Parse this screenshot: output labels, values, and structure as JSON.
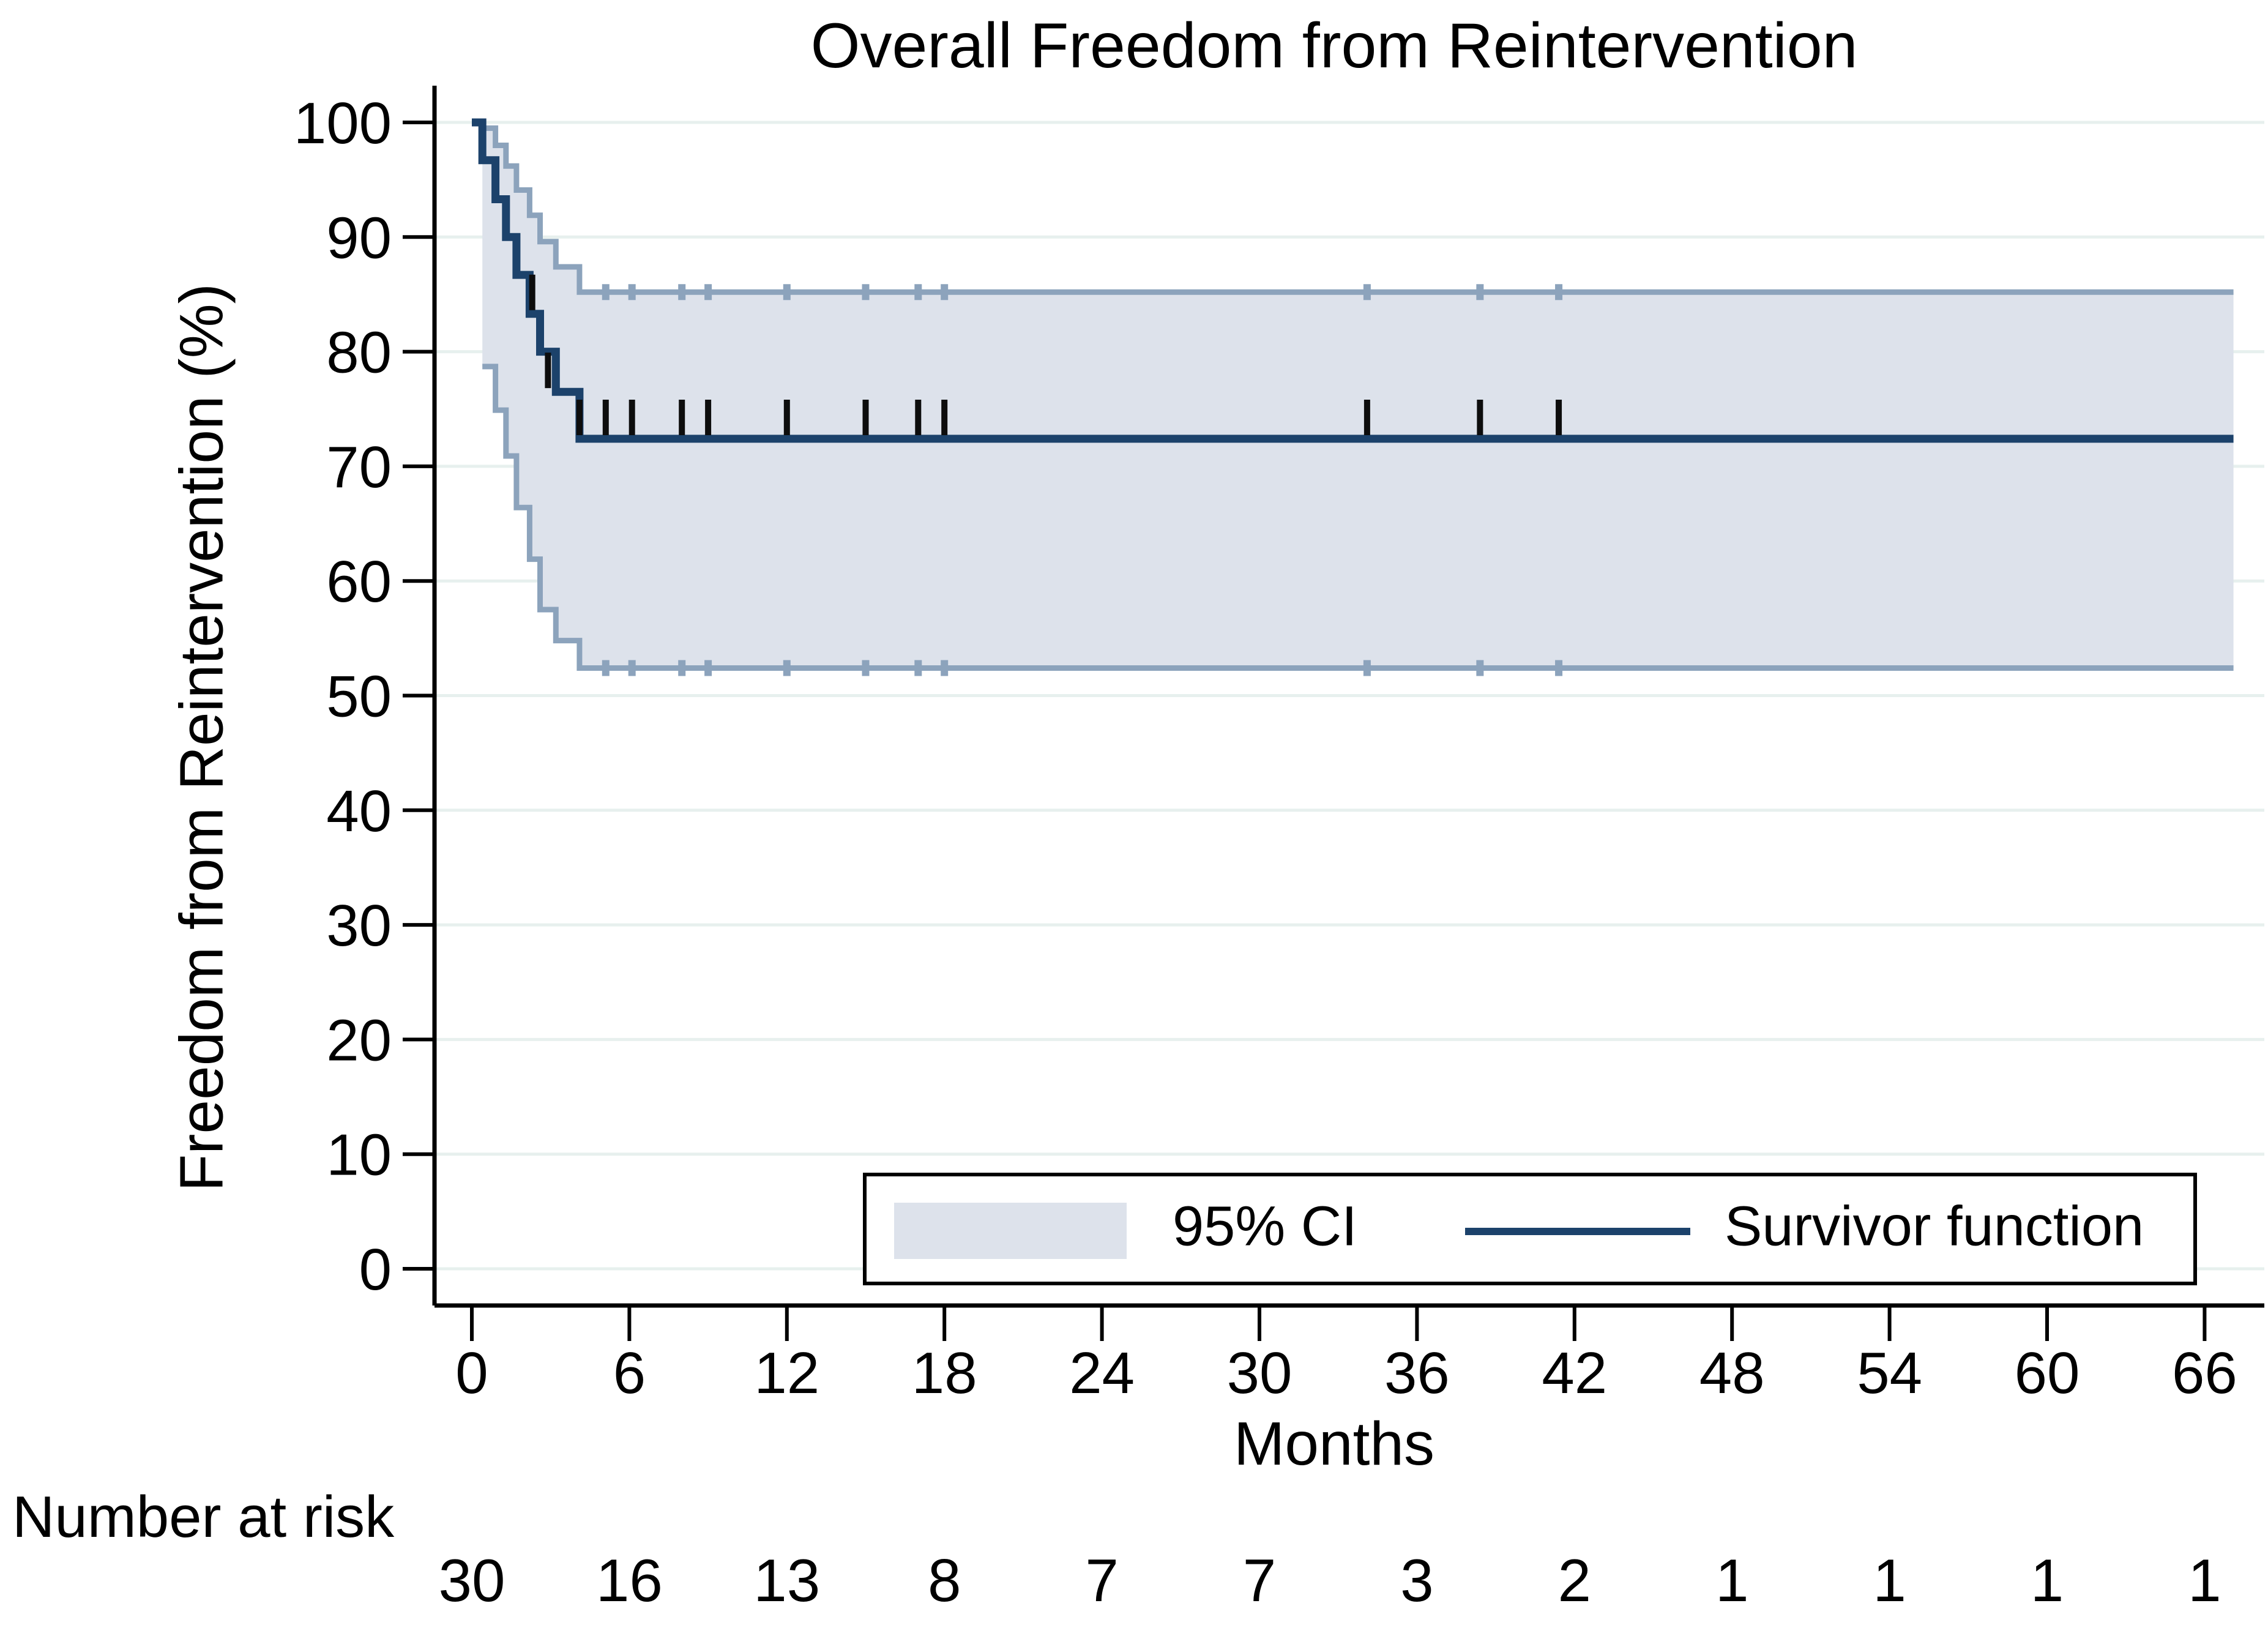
{
  "chart_data": {
    "type": "line",
    "subtype": "kaplan_meier_step",
    "title": "Overall Freedom from Reintervention",
    "xlabel": "Months",
    "ylabel": "Freedom from Reintervention (%)",
    "xlim": [
      0,
      67.1
    ],
    "ylim": [
      0,
      100
    ],
    "x_ticks": [
      0,
      6,
      12,
      18,
      24,
      30,
      36,
      42,
      48,
      54,
      60,
      66
    ],
    "y_ticks": [
      0,
      10,
      20,
      30,
      40,
      50,
      60,
      70,
      80,
      90,
      100
    ],
    "grid": "horizontal",
    "legend": {
      "position": "inside-bottom-right",
      "entries": [
        {
          "label": "95% CI",
          "swatch": "area"
        },
        {
          "label": "Survivor function",
          "swatch": "line"
        }
      ]
    },
    "series": [
      {
        "name": "Survivor function",
        "style": "step",
        "color": "#1c426b",
        "points": [
          [
            0,
            100
          ],
          [
            0.4,
            96.7
          ],
          [
            0.9,
            93.3
          ],
          [
            1.3,
            90
          ],
          [
            1.7,
            86.7
          ],
          [
            2.2,
            83.3
          ],
          [
            2.6,
            80
          ],
          [
            3.2,
            76.5
          ],
          [
            4.1,
            72.4
          ],
          [
            67.1,
            72.4
          ]
        ]
      },
      {
        "name": "95% CI upper",
        "style": "step",
        "color": "#8ca3bc",
        "points": [
          [
            0.4,
            100
          ],
          [
            0.4,
            99.5
          ],
          [
            0.9,
            98
          ],
          [
            1.3,
            96.2
          ],
          [
            1.7,
            94.1
          ],
          [
            2.2,
            91.9
          ],
          [
            2.6,
            89.6
          ],
          [
            3.2,
            87.4
          ],
          [
            4.1,
            85.2
          ],
          [
            67.1,
            85.2
          ]
        ]
      },
      {
        "name": "95% CI lower",
        "style": "step",
        "color": "#8ca3bc",
        "points": [
          [
            0.4,
            78.7
          ],
          [
            0.9,
            74.9
          ],
          [
            1.3,
            70.9
          ],
          [
            1.7,
            66.4
          ],
          [
            2.2,
            61.9
          ],
          [
            2.6,
            57.5
          ],
          [
            3.2,
            54.8
          ],
          [
            4.1,
            52.4
          ],
          [
            67.1,
            52.4
          ]
        ]
      }
    ],
    "censor_marks": [
      [
        2.3,
        83.3
      ],
      [
        2.9,
        76.5
      ],
      [
        4.1,
        72.4
      ],
      [
        5.1,
        72.4
      ],
      [
        6.1,
        72.4
      ],
      [
        8,
        72.4
      ],
      [
        9,
        72.4
      ],
      [
        12,
        72.4
      ],
      [
        15,
        72.4
      ],
      [
        17,
        72.4
      ],
      [
        18,
        72.4
      ],
      [
        34.1,
        72.4
      ],
      [
        38.4,
        72.4
      ],
      [
        41.4,
        72.4
      ]
    ],
    "number_at_risk": {
      "label": "Number at risk",
      "times": [
        0,
        6,
        12,
        18,
        24,
        30,
        36,
        42,
        48,
        54,
        60,
        66
      ],
      "values": [
        30,
        16,
        13,
        8,
        7,
        7,
        3,
        2,
        1,
        1,
        1,
        1
      ]
    },
    "colors": {
      "survivor_line": "#1c426b",
      "ci_fill": "#dde2eb",
      "ci_edge": "#8ca3bc",
      "gridline": "#e7f0ee",
      "axis": "#000000",
      "censor_tick": "#0d0d0d",
      "background": "#ffffff"
    }
  }
}
